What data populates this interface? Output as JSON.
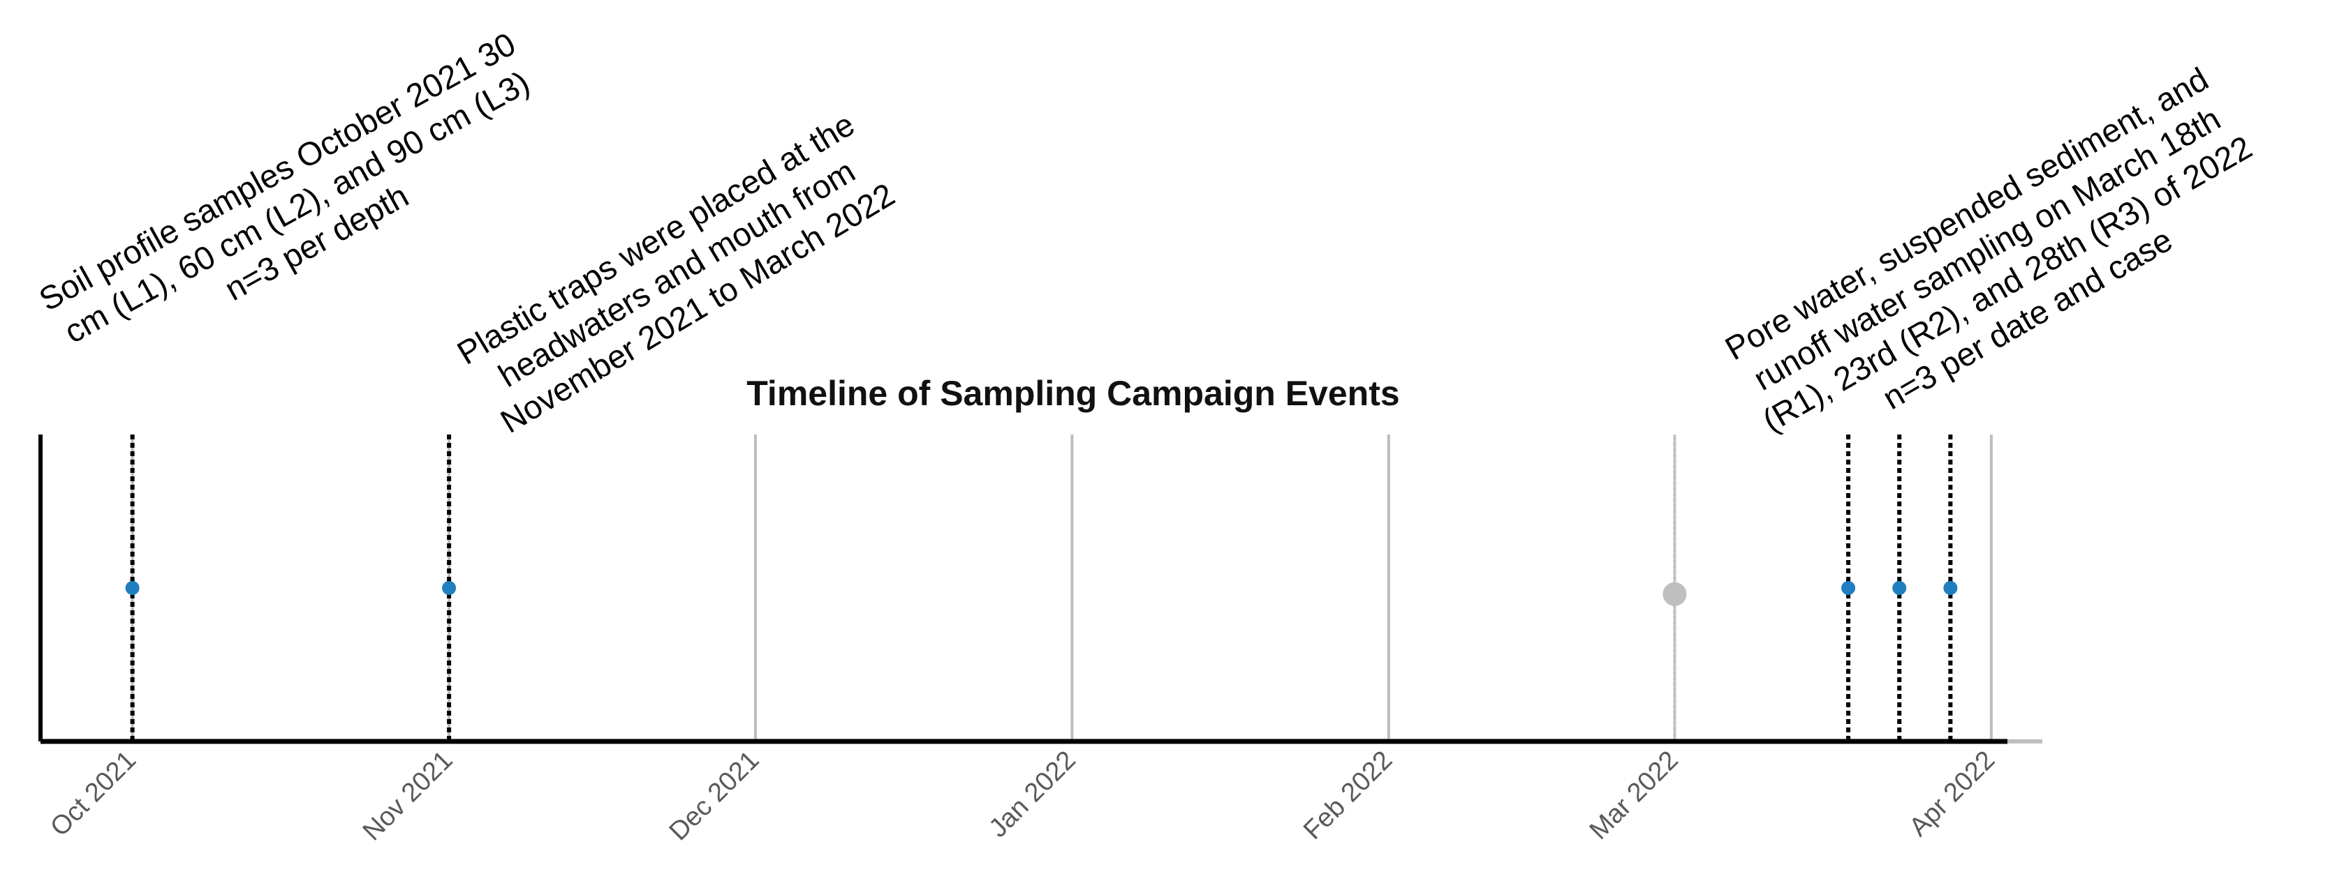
{
  "chart_data": {
    "type": "timeline",
    "title": "Timeline of Sampling Campaign Events",
    "xlim": [
      "2021-09-22",
      "2022-04-06"
    ],
    "ylim": [
      0,
      1
    ],
    "xticks": [
      {
        "value": "2021-10",
        "label": "Oct 2021"
      },
      {
        "value": "2021-11",
        "label": "Nov 2021"
      },
      {
        "value": "2021-12",
        "label": "Dec 2021"
      },
      {
        "value": "2022-01",
        "label": "Jan 2022"
      },
      {
        "value": "2022-02",
        "label": "Feb 2022"
      },
      {
        "value": "2022-03",
        "label": "Mar 2022"
      },
      {
        "value": "2022-04",
        "label": "Apr 2022"
      }
    ],
    "grid": true,
    "grid_color": "#bdbdbd",
    "series": [
      {
        "color": "#1f7fc1",
        "line_color": "#000000",
        "x": [
          "2021-10",
          "2021-11",
          "2022-03-18",
          "2022-03-23",
          "2022-03-28"
        ],
        "values": [
          0.5,
          0.5,
          0.5,
          0.5,
          0.5
        ]
      },
      {
        "color": "#bfbfbf",
        "line_color": "#c8c8c8",
        "x": [
          "2022-03"
        ],
        "values": [
          0.48
        ]
      }
    ],
    "annotations": [
      {
        "lines": [
          "Soil profile samples October 2021 30",
          "cm (L1), 60 cm (L2), and 90 cm (L3)",
          "n=3 per depth"
        ]
      },
      {
        "lines": [
          "Plastic traps were placed at the",
          "headwaters and mouth from",
          "November 2021 to March 2022"
        ]
      },
      {
        "lines": [
          "Pore water, suspended sediment, and",
          "runoff water sampling on March 18th",
          "(R1), 23rd (R2), and 28th (R3) of 2022",
          "n=3 per date and case"
        ]
      }
    ]
  }
}
